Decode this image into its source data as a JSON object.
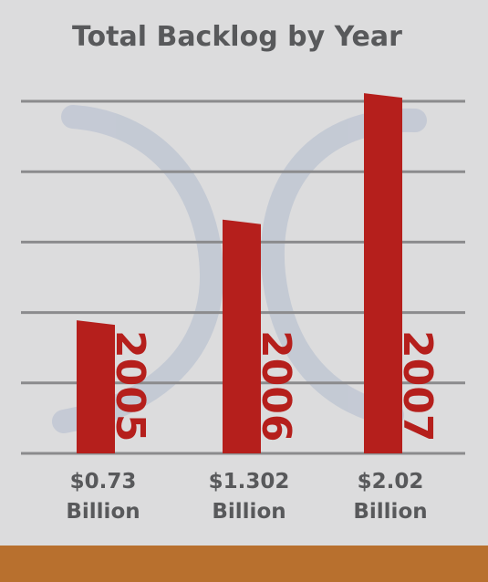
{
  "colors": {
    "background": "#dcdcdd",
    "bar": "#b51f1c",
    "year_text": "#b51f1c",
    "grid": "#8b8b8d",
    "title_text": "#58595b",
    "value_text": "#58595b",
    "footer": "#b8702e",
    "decor_swoosh": "#bfc6d3"
  },
  "chart_data": {
    "type": "bar",
    "title": "Total Backlog by Year",
    "xlabel": "",
    "ylabel": "",
    "categories": [
      "2005",
      "2006",
      "2007"
    ],
    "values": [
      0.73,
      1.302,
      2.02
    ],
    "value_labels": [
      {
        "amount": "$0.73",
        "unit": "Billion"
      },
      {
        "amount": "$1.302",
        "unit": "Billion"
      },
      {
        "amount": "$2.02",
        "unit": "Billion"
      }
    ],
    "ylim": [
      0,
      2.0
    ],
    "grid": true,
    "legend": "none"
  }
}
